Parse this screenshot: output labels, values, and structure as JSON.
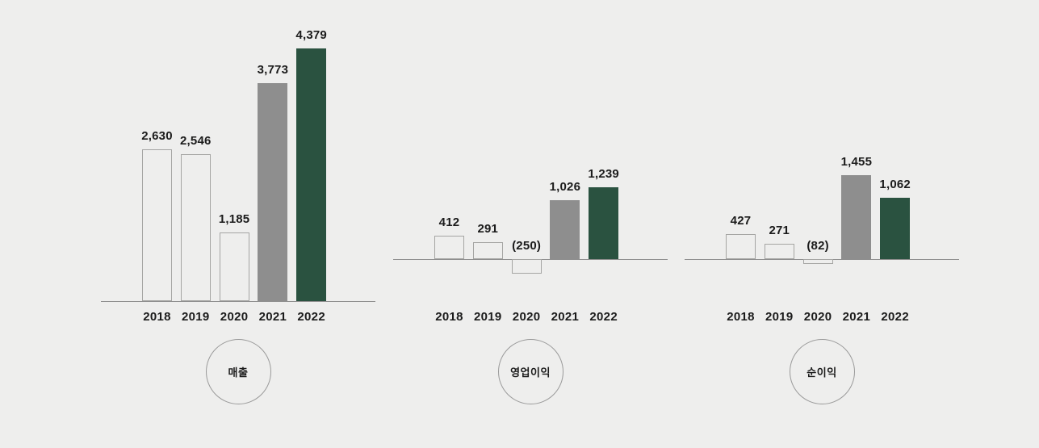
{
  "page": {
    "background": "#eeeeed"
  },
  "colors": {
    "axis": "#8f8f8f",
    "text": "#1b1b1b",
    "outline_bar_border": "#a5a5a3",
    "outline_bar_fill": "transparent",
    "gray_bar": "#8e8e8e",
    "green_bar": "#2a5240",
    "circle_border": "#9a9a9a"
  },
  "bar_styles": [
    "outline",
    "outline",
    "outline",
    "solid-gray",
    "solid-green"
  ],
  "chart_data": [
    {
      "type": "bar",
      "title": "매출",
      "categories": [
        "2018",
        "2019",
        "2020",
        "2021",
        "2022"
      ],
      "values": [
        2630,
        2546,
        1185,
        3773,
        4379
      ],
      "value_labels": [
        "2,630",
        "2,546",
        "1,185",
        "3,773",
        "4,379"
      ],
      "xlabel": "",
      "ylabel": "",
      "grid": false,
      "legend": false,
      "ylim": [
        0,
        4600
      ]
    },
    {
      "type": "bar",
      "title": "영업이익",
      "categories": [
        "2018",
        "2019",
        "2020",
        "2021",
        "2022"
      ],
      "values": [
        412,
        291,
        -250,
        1026,
        1239
      ],
      "value_labels": [
        "412",
        "291",
        "(250)",
        "1,026",
        "1,239"
      ],
      "xlabel": "",
      "ylabel": "",
      "grid": false,
      "legend": false,
      "ylim": [
        -400,
        1500
      ]
    },
    {
      "type": "bar",
      "title": "순이익",
      "categories": [
        "2018",
        "2019",
        "2020",
        "2021",
        "2022"
      ],
      "values": [
        427,
        271,
        -82,
        1455,
        1062
      ],
      "value_labels": [
        "427",
        "271",
        "(82)",
        "1,455",
        "1,062"
      ],
      "xlabel": "",
      "ylabel": "",
      "grid": false,
      "legend": false,
      "ylim": [
        -400,
        1500
      ]
    }
  ]
}
